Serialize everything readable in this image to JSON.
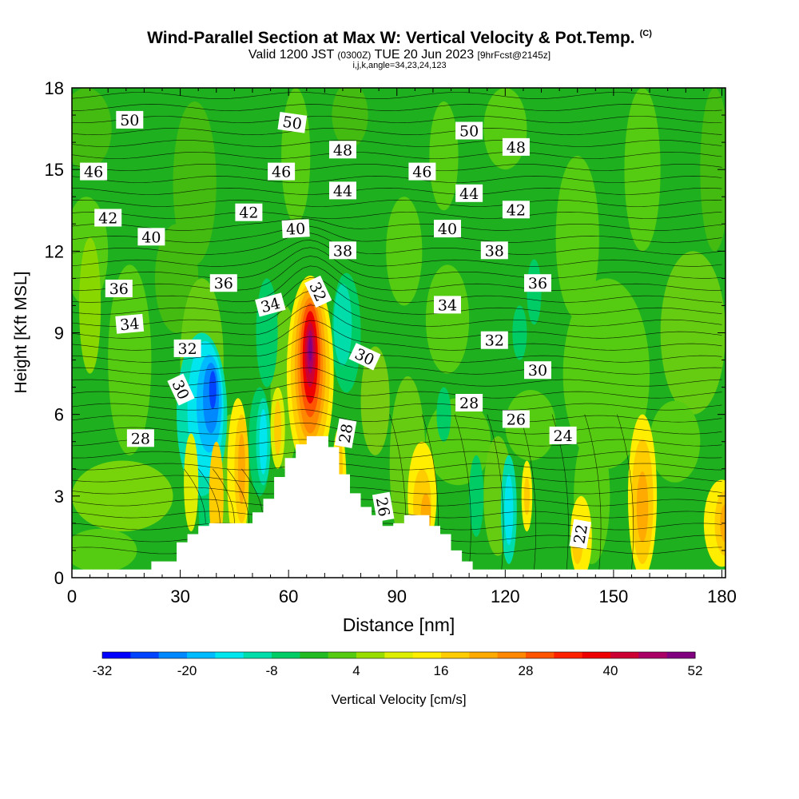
{
  "title": "Wind-Parallel Section at Max W: Vertical Velocity & Pot.Temp.",
  "copyright": "(C)",
  "subtitle_valid": "Valid 1200 JST",
  "subtitle_utc": "(0300Z)",
  "subtitle_date": "TUE 20 Jun 2023",
  "subtitle_fcst": "[9hrFcst@2145z]",
  "subtitle2": "i,j,k,angle=34,23,24,123",
  "chart_data": {
    "type": "contour",
    "xlabel": "Distance [nm]",
    "ylabel": "Height [Kft MSL]",
    "xlim": [
      0,
      181
    ],
    "ylim": [
      0,
      18
    ],
    "xticks": [
      "0",
      "30",
      "60",
      "90",
      "120",
      "150",
      "180"
    ],
    "yticks": [
      "0",
      "3",
      "6",
      "9",
      "12",
      "15",
      "18"
    ],
    "colorbar": {
      "label": "Vertical Velocity [cm/s]",
      "min": -32,
      "max": 52,
      "tick_labels": [
        "-32",
        "-20",
        "-8",
        "4",
        "16",
        "28",
        "40",
        "52"
      ],
      "colors": [
        "#0000ff",
        "#0044ff",
        "#0088ff",
        "#00bbff",
        "#00e5ee",
        "#00ddaa",
        "#00cc66",
        "#22bb22",
        "#55cc11",
        "#99dd00",
        "#ddee00",
        "#ffee00",
        "#ffcc00",
        "#ffaa00",
        "#ff8800",
        "#ff5500",
        "#ff2200",
        "#ee0000",
        "#cc0033",
        "#aa0066",
        "#800080"
      ]
    },
    "theta_labels": [
      {
        "text": "50",
        "x": 16,
        "y": 16.8,
        "r": 0
      },
      {
        "text": "50",
        "x": 61,
        "y": 16.7,
        "r": 8
      },
      {
        "text": "50",
        "x": 110,
        "y": 16.4,
        "r": 0
      },
      {
        "text": "48",
        "x": 75,
        "y": 15.7,
        "r": 0
      },
      {
        "text": "48",
        "x": 123,
        "y": 15.8,
        "r": 0
      },
      {
        "text": "46",
        "x": 6,
        "y": 14.9,
        "r": 0
      },
      {
        "text": "46",
        "x": 58,
        "y": 14.9,
        "r": 0
      },
      {
        "text": "46",
        "x": 97,
        "y": 14.9,
        "r": 0
      },
      {
        "text": "44",
        "x": 75,
        "y": 14.2,
        "r": 0
      },
      {
        "text": "44",
        "x": 110,
        "y": 14.1,
        "r": 0
      },
      {
        "text": "42",
        "x": 10,
        "y": 13.2,
        "r": 0
      },
      {
        "text": "42",
        "x": 49,
        "y": 13.4,
        "r": 0
      },
      {
        "text": "42",
        "x": 123,
        "y": 13.5,
        "r": 0
      },
      {
        "text": "40",
        "x": 22,
        "y": 12.5,
        "r": 0
      },
      {
        "text": "40",
        "x": 62,
        "y": 12.8,
        "r": -3
      },
      {
        "text": "40",
        "x": 104,
        "y": 12.8,
        "r": 0
      },
      {
        "text": "38",
        "x": 75,
        "y": 12.0,
        "r": 0
      },
      {
        "text": "38",
        "x": 117,
        "y": 12.0,
        "r": 0
      },
      {
        "text": "36",
        "x": 13,
        "y": 10.6,
        "r": 0
      },
      {
        "text": "36",
        "x": 42,
        "y": 10.8,
        "r": 0
      },
      {
        "text": "36",
        "x": 129,
        "y": 10.8,
        "r": 0
      },
      {
        "text": "34",
        "x": 55,
        "y": 10.0,
        "r": -15
      },
      {
        "text": "34",
        "x": 104,
        "y": 10.0,
        "r": 0
      },
      {
        "text": "34",
        "x": 16,
        "y": 9.3,
        "r": -5
      },
      {
        "text": "32",
        "x": 68,
        "y": 10.5,
        "r": 65
      },
      {
        "text": "32",
        "x": 32,
        "y": 8.4,
        "r": 0
      },
      {
        "text": "32",
        "x": 117,
        "y": 8.7,
        "r": 0
      },
      {
        "text": "30",
        "x": 81,
        "y": 8.1,
        "r": 25
      },
      {
        "text": "30",
        "x": 30,
        "y": 6.9,
        "r": 65
      },
      {
        "text": "30",
        "x": 129,
        "y": 7.6,
        "r": 0
      },
      {
        "text": "28",
        "x": 110,
        "y": 6.4,
        "r": 0
      },
      {
        "text": "28",
        "x": 76,
        "y": 5.3,
        "r": -80
      },
      {
        "text": "28",
        "x": 19,
        "y": 5.1,
        "r": 0
      },
      {
        "text": "26",
        "x": 123,
        "y": 5.8,
        "r": 0
      },
      {
        "text": "26",
        "x": 86,
        "y": 2.6,
        "r": 80
      },
      {
        "text": "24",
        "x": 136,
        "y": 5.2,
        "r": 0
      },
      {
        "text": "22",
        "x": 141,
        "y": 1.6,
        "r": -80
      }
    ],
    "terrain_profile": {
      "x": [
        0,
        22,
        22,
        29,
        29,
        32,
        32,
        35,
        35,
        38,
        38,
        45,
        45,
        50,
        50,
        53,
        53,
        56,
        56,
        59,
        59,
        62,
        62,
        65,
        65,
        71,
        71,
        74,
        74,
        77,
        77,
        80,
        80,
        83,
        83,
        86,
        86,
        89,
        89,
        92,
        92,
        99,
        99,
        102,
        102,
        105,
        105,
        108,
        108,
        111,
        111,
        114,
        114,
        181
      ],
      "y": [
        0.3,
        0.3,
        0.6,
        0.6,
        1.3,
        1.3,
        1.6,
        1.6,
        1.9,
        1.9,
        2.0,
        2.0,
        2.0,
        2.0,
        2.4,
        2.4,
        2.9,
        2.9,
        3.7,
        3.7,
        4.4,
        4.4,
        4.9,
        4.9,
        5.2,
        5.2,
        4.8,
        4.8,
        3.8,
        3.8,
        3.1,
        3.1,
        2.6,
        2.6,
        2.3,
        2.3,
        1.9,
        1.9,
        2.0,
        2.0,
        2.3,
        2.3,
        1.9,
        1.9,
        1.6,
        1.6,
        1.0,
        1.0,
        0.6,
        0.6,
        0.3,
        0.3,
        0.3,
        0.3
      ]
    }
  }
}
